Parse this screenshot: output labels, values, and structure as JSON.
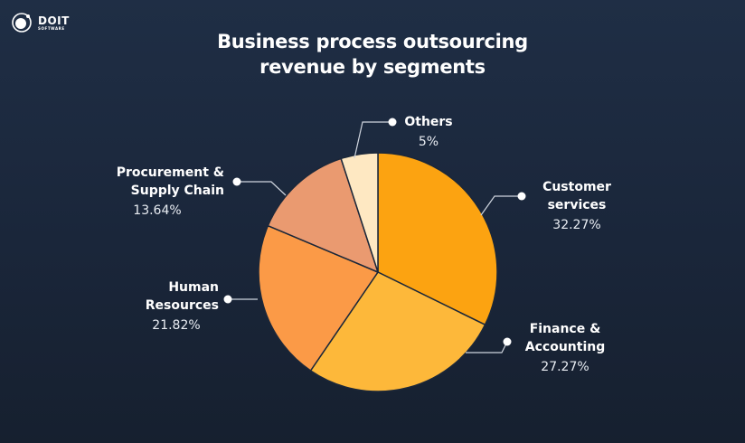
{
  "brand": {
    "name": "DOIT",
    "subtitle": "SOFTWARE"
  },
  "chart_data": {
    "type": "pie",
    "title": "Business process outsourcing revenue by segments",
    "title_lines": [
      "Business process outsourcing",
      "revenue by segments"
    ],
    "slices": [
      {
        "label": "Customer services",
        "value": 32.27,
        "display": "32.27%",
        "color": "#fca311"
      },
      {
        "label": "Finance & Accounting",
        "value": 27.27,
        "display": "27.27%",
        "color": "#fdb83a"
      },
      {
        "label": "Human Resources",
        "value": 21.82,
        "display": "21.82%",
        "color": "#fb9a47"
      },
      {
        "label": "Procurement & Supply Chain",
        "value": 13.64,
        "display": "13.64%",
        "color": "#ea9a70"
      },
      {
        "label": "Others",
        "value": 5,
        "display": "5%",
        "color": "#fee8c2"
      }
    ],
    "start_angle": "12 o'clock, clockwise",
    "legend": "callout labels"
  },
  "labels": {
    "customer": {
      "name": "Customer\nservices",
      "pct": "32.27%"
    },
    "finance": {
      "name": "Finance &\nAccounting",
      "pct": "27.27%"
    },
    "hr": {
      "name": "Human\nResources",
      "pct": "21.82%"
    },
    "procurement": {
      "name": "Procurement &\nSupply Chain",
      "pct": "13.64%"
    },
    "others": {
      "name": "Others",
      "pct": "5%"
    }
  }
}
